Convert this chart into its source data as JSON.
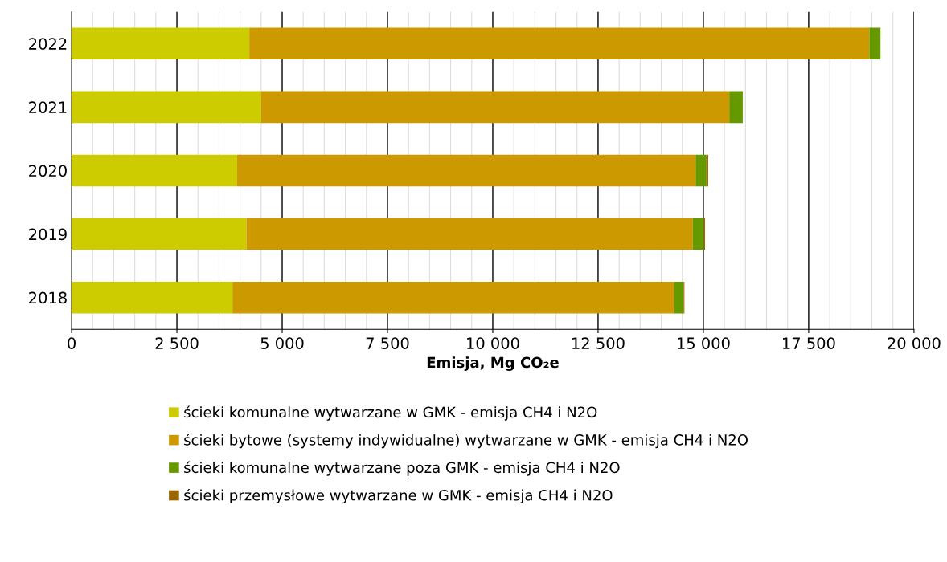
{
  "chart_data": {
    "type": "bar",
    "orientation": "horizontal",
    "stacked": true,
    "xlabel": "Emisja, Mg CO₂e",
    "categories": [
      "2022",
      "2021",
      "2020",
      "2019",
      "2018"
    ],
    "series": [
      {
        "name": "ścieki komunalne wytwarzane w GMK - emisja CH4 i N2O",
        "color": "#cccc00",
        "values": [
          4220,
          4500,
          3930,
          4150,
          3820
        ]
      },
      {
        "name": "ścieki bytowe (systemy indywidualne) wytwarzane w GMK - emisja CH4 i N2O",
        "color": "#cc9900",
        "values": [
          14720,
          11115,
          10885,
          10600,
          10490
        ]
      },
      {
        "name": "ścieki komunalne wytwarzane poza GMK - emisja CH4 i N2O",
        "color": "#669900",
        "values": [
          265,
          320,
          260,
          260,
          220
        ]
      },
      {
        "name": "ścieki przemysłowe wytwarzane w GMK - emisja CH4 i N2O",
        "color": "#996600",
        "values": [
          0,
          0,
          40,
          30,
          20
        ]
      }
    ],
    "xlim": [
      0,
      20000
    ],
    "xticks": [
      0,
      {
        "value": 2500,
        "label": "2 500"
      },
      {
        "value": 5000,
        "label": "5 000"
      },
      {
        "value": 7500,
        "label": "7 500"
      },
      {
        "value": 10000,
        "label": "10 000"
      },
      {
        "value": 12500,
        "label": "12 500"
      },
      {
        "value": 15000,
        "label": "15 000"
      },
      {
        "value": 17500,
        "label": "17 500"
      },
      {
        "value": 20000,
        "label": "20 000"
      }
    ],
    "grid": "x",
    "legend": "bottom"
  }
}
